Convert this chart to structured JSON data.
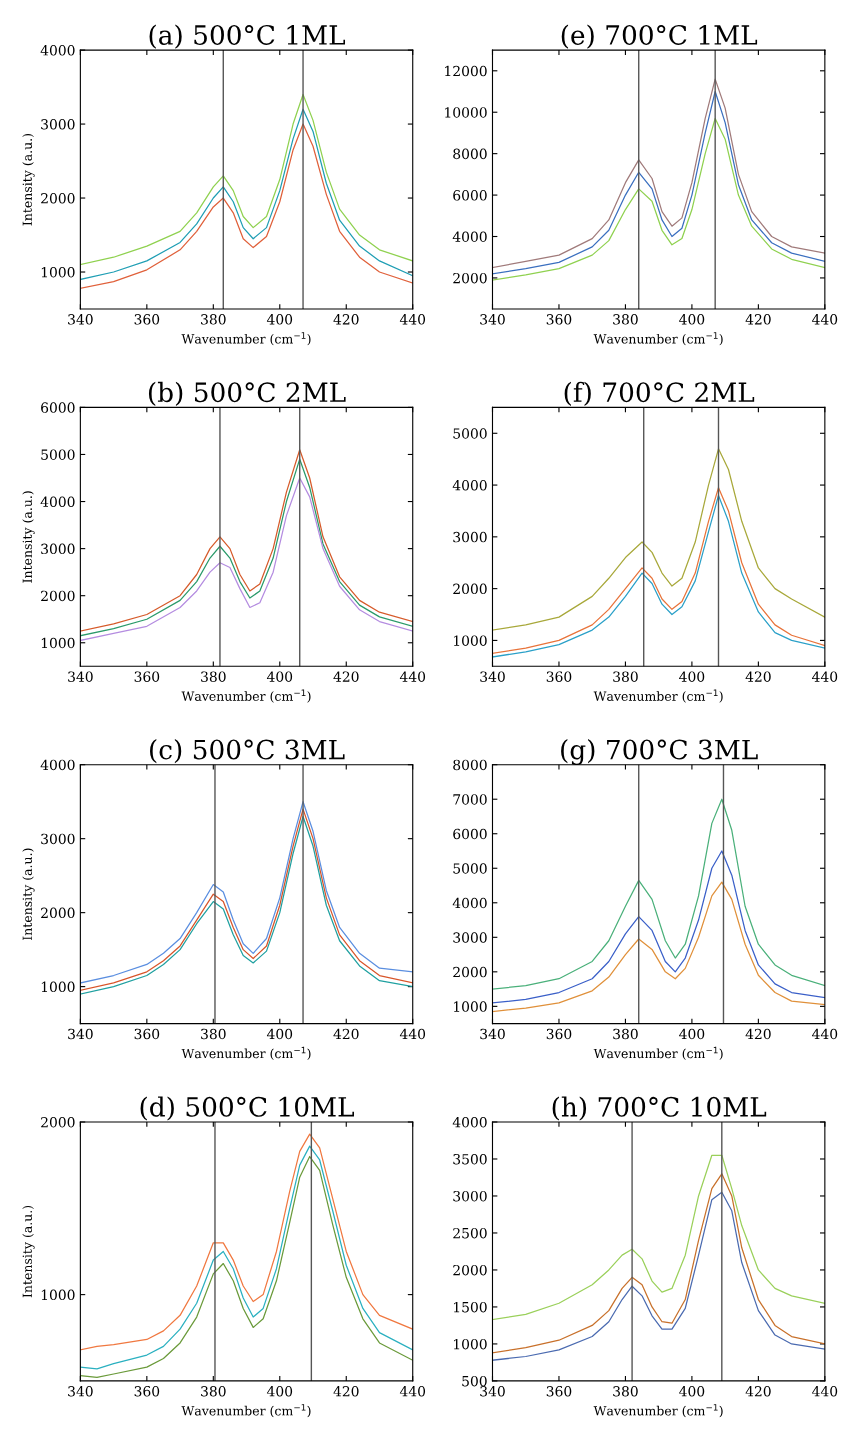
{
  "chart_data": [
    {
      "type": "line",
      "title": "(a) 500°C 1ML",
      "xlabel": "Wavenumber (cm$^{−1}$)",
      "ylabel": "Intensity (a.u.)",
      "xlim": [
        340,
        440
      ],
      "xticks": [
        340,
        360,
        380,
        400,
        420,
        440
      ],
      "ylim": [
        500,
        4000
      ],
      "yticks": [
        1000,
        2000,
        3000,
        4000
      ],
      "ref_lines": [
        {
          "axis": "x",
          "value": 383,
          "color": "#555555"
        },
        {
          "axis": "x",
          "value": 407,
          "color": "#555555"
        }
      ],
      "x": [
        340,
        350,
        360,
        370,
        375,
        380,
        383,
        386,
        389,
        392,
        396,
        400,
        404,
        407,
        410,
        414,
        418,
        424,
        430,
        440
      ],
      "series": [
        {
          "color": "#8fd14f",
          "values": [
            1100,
            1200,
            1350,
            1550,
            1800,
            2150,
            2300,
            2100,
            1750,
            1600,
            1750,
            2250,
            3000,
            3400,
            3050,
            2350,
            1850,
            1500,
            1300,
            1150
          ]
        },
        {
          "color": "#1f9eb4",
          "values": [
            900,
            1000,
            1150,
            1400,
            1650,
            2000,
            2150,
            1950,
            1600,
            1450,
            1600,
            2100,
            2800,
            3200,
            2900,
            2200,
            1700,
            1350,
            1150,
            950
          ]
        },
        {
          "color": "#e0603a",
          "values": [
            780,
            870,
            1030,
            1300,
            1550,
            1880,
            2000,
            1800,
            1450,
            1330,
            1480,
            1950,
            2650,
            3000,
            2700,
            2050,
            1550,
            1200,
            1000,
            850
          ]
        }
      ]
    },
    {
      "type": "line",
      "title": "(e) 700°C 1ML",
      "xlabel": "Wavenumber (cm$^{−1}$)",
      "xlim": [
        340,
        440
      ],
      "xticks": [
        340,
        360,
        380,
        400,
        420,
        440
      ],
      "ylim": [
        500,
        13000
      ],
      "yticks": [
        2000,
        4000,
        6000,
        8000,
        10000,
        12000
      ],
      "ref_lines": [
        {
          "axis": "x",
          "value": 384,
          "color": "#555555"
        },
        {
          "axis": "x",
          "value": 407,
          "color": "#555555"
        }
      ],
      "x": [
        340,
        350,
        360,
        370,
        375,
        380,
        384,
        388,
        391,
        394,
        397,
        400,
        404,
        407,
        410,
        414,
        418,
        424,
        430,
        440
      ],
      "series": [
        {
          "color": "#a07a7a",
          "values": [
            2500,
            2800,
            3100,
            3900,
            4800,
            6600,
            7700,
            6800,
            5200,
            4500,
            4900,
            6600,
            9700,
            11600,
            10200,
            7000,
            5200,
            4000,
            3500,
            3200
          ]
        },
        {
          "color": "#3a6fbf",
          "values": [
            2200,
            2450,
            2750,
            3500,
            4300,
            6000,
            7100,
            6300,
            4800,
            4000,
            4400,
            6000,
            9000,
            11000,
            9500,
            6500,
            4800,
            3700,
            3200,
            2800
          ]
        },
        {
          "color": "#8fd14f",
          "values": [
            1900,
            2150,
            2450,
            3100,
            3800,
            5300,
            6300,
            5700,
            4300,
            3600,
            3900,
            5300,
            8000,
            9700,
            8700,
            6000,
            4500,
            3400,
            2900,
            2500
          ]
        }
      ]
    },
    {
      "type": "line",
      "title": "(b) 500°C 2ML",
      "xlabel": "Wavenumber (cm$^{−1}$)",
      "ylabel": "Intensity (a.u.)",
      "xlim": [
        340,
        440
      ],
      "xticks": [
        340,
        360,
        380,
        400,
        420,
        440
      ],
      "ylim": [
        500,
        6000
      ],
      "yticks": [
        1000,
        2000,
        3000,
        4000,
        5000,
        6000
      ],
      "ref_lines": [
        {
          "axis": "x",
          "value": 382,
          "color": "#555555"
        },
        {
          "axis": "x",
          "value": 406,
          "color": "#555555"
        }
      ],
      "x": [
        340,
        350,
        360,
        370,
        375,
        379,
        382,
        385,
        388,
        391,
        394,
        398,
        402,
        406,
        409,
        413,
        418,
        424,
        430,
        440
      ],
      "series": [
        {
          "color": "#d65a2a",
          "values": [
            1250,
            1400,
            1600,
            2000,
            2450,
            3000,
            3250,
            3000,
            2450,
            2100,
            2250,
            3000,
            4200,
            5100,
            4500,
            3250,
            2400,
            1900,
            1650,
            1450
          ]
        },
        {
          "color": "#2a9a6a",
          "values": [
            1150,
            1300,
            1500,
            1900,
            2300,
            2800,
            3050,
            2800,
            2300,
            1950,
            2100,
            2800,
            4000,
            4900,
            4300,
            3100,
            2300,
            1800,
            1550,
            1350
          ]
        },
        {
          "color": "#b48ce0",
          "values": [
            1050,
            1200,
            1350,
            1750,
            2100,
            2500,
            2700,
            2600,
            2150,
            1750,
            1850,
            2500,
            3700,
            4500,
            4100,
            3000,
            2200,
            1700,
            1450,
            1250
          ]
        }
      ]
    },
    {
      "type": "line",
      "title": "(f) 700°C 2ML",
      "xlabel": "Wavenumber (cm$^{−1}$)",
      "xlim": [
        340,
        440
      ],
      "xticks": [
        340,
        360,
        380,
        400,
        420,
        440
      ],
      "ylim": [
        500,
        5500
      ],
      "yticks": [
        1000,
        2000,
        3000,
        4000,
        5000
      ],
      "ref_lines": [
        {
          "axis": "x",
          "value": 385.5,
          "color": "#555555"
        },
        {
          "axis": "x",
          "value": 408,
          "color": "#555555"
        }
      ],
      "x": [
        340,
        350,
        360,
        370,
        375,
        380,
        385,
        388,
        391,
        394,
        397,
        401,
        405,
        408,
        411,
        415,
        420,
        425,
        430,
        440
      ],
      "series": [
        {
          "color": "#a8a83a",
          "values": [
            1200,
            1300,
            1450,
            1850,
            2200,
            2600,
            2900,
            2700,
            2300,
            2050,
            2200,
            2900,
            4000,
            4700,
            4300,
            3300,
            2400,
            2000,
            1800,
            1450
          ]
        },
        {
          "color": "#e8733a",
          "values": [
            750,
            850,
            1000,
            1300,
            1600,
            2000,
            2400,
            2200,
            1800,
            1600,
            1750,
            2300,
            3300,
            3950,
            3500,
            2500,
            1700,
            1300,
            1100,
            900
          ]
        },
        {
          "color": "#2aa0c8",
          "values": [
            680,
            780,
            920,
            1200,
            1450,
            1850,
            2300,
            2100,
            1700,
            1500,
            1650,
            2150,
            3100,
            3800,
            3300,
            2300,
            1550,
            1150,
            1000,
            850
          ]
        }
      ]
    },
    {
      "type": "line",
      "title": "(c) 500°C 3ML",
      "xlabel": "Wavenumber (cm$^{−1}$)",
      "ylabel": "Intensity (a.u.)",
      "xlim": [
        340,
        440
      ],
      "xticks": [
        340,
        360,
        380,
        400,
        420,
        440
      ],
      "ylim": [
        500,
        4000
      ],
      "yticks": [
        1000,
        2000,
        3000,
        4000
      ],
      "ref_lines": [
        {
          "axis": "x",
          "value": 380.5,
          "color": "#555555"
        },
        {
          "axis": "x",
          "value": 407,
          "color": "#555555"
        }
      ],
      "x": [
        340,
        350,
        360,
        365,
        370,
        375,
        380,
        383,
        386,
        389,
        392,
        396,
        400,
        404,
        407,
        410,
        414,
        418,
        424,
        430,
        440
      ],
      "series": [
        {
          "color": "#5a8ee0",
          "values": [
            1050,
            1150,
            1300,
            1450,
            1650,
            2000,
            2380,
            2280,
            1900,
            1580,
            1450,
            1650,
            2200,
            3000,
            3500,
            3100,
            2300,
            1800,
            1450,
            1250,
            1200
          ]
        },
        {
          "color": "#d8552a",
          "values": [
            950,
            1050,
            1200,
            1350,
            1550,
            1900,
            2250,
            2150,
            1800,
            1500,
            1380,
            1550,
            2100,
            2900,
            3400,
            3000,
            2200,
            1700,
            1350,
            1150,
            1050
          ]
        },
        {
          "color": "#1fa0a0",
          "values": [
            900,
            1000,
            1150,
            1300,
            1500,
            1850,
            2150,
            2050,
            1700,
            1420,
            1320,
            1480,
            2000,
            2800,
            3300,
            2900,
            2100,
            1620,
            1280,
            1080,
            1000
          ]
        }
      ]
    },
    {
      "type": "line",
      "title": "(g) 700°C 3ML",
      "xlabel": "Wavenumber (cm$^{−1}$)",
      "xlim": [
        340,
        440
      ],
      "xticks": [
        340,
        360,
        380,
        400,
        420,
        440
      ],
      "ylim": [
        500,
        8000
      ],
      "yticks": [
        1000,
        2000,
        3000,
        4000,
        5000,
        6000,
        7000,
        8000
      ],
      "ref_lines": [
        {
          "axis": "x",
          "value": 384,
          "color": "#555555"
        },
        {
          "axis": "x",
          "value": 409.5,
          "color": "#555555"
        }
      ],
      "x": [
        340,
        350,
        360,
        370,
        375,
        380,
        384,
        388,
        392,
        395,
        398,
        402,
        406,
        409,
        412,
        416,
        420,
        425,
        430,
        440
      ],
      "series": [
        {
          "color": "#4ab07a",
          "values": [
            1500,
            1600,
            1800,
            2300,
            2900,
            3900,
            4650,
            4100,
            2900,
            2400,
            2800,
            4200,
            6300,
            7000,
            6100,
            3900,
            2800,
            2200,
            1900,
            1600
          ]
        },
        {
          "color": "#3a5fc8",
          "values": [
            1100,
            1200,
            1400,
            1800,
            2300,
            3100,
            3600,
            3200,
            2300,
            2000,
            2400,
            3500,
            5000,
            5500,
            4800,
            3200,
            2200,
            1650,
            1400,
            1250
          ]
        },
        {
          "color": "#e0903a",
          "values": [
            850,
            950,
            1100,
            1450,
            1850,
            2500,
            2950,
            2650,
            2000,
            1800,
            2100,
            3000,
            4200,
            4600,
            4100,
            2800,
            1900,
            1400,
            1150,
            1050
          ]
        }
      ]
    },
    {
      "type": "line",
      "title": "(d) 500°C 10ML",
      "xlabel": "Wavenumber (cm$^{−1}$)",
      "ylabel": "Intensity (a.u.)",
      "xlim": [
        340,
        440
      ],
      "xticks": [
        340,
        360,
        380,
        400,
        420,
        440
      ],
      "ylim": [
        500,
        2000
      ],
      "yticks": [
        1000,
        2000
      ],
      "ref_lines": [
        {
          "axis": "x",
          "value": 380.5,
          "color": "#555555"
        },
        {
          "axis": "x",
          "value": 409.5,
          "color": "#555555"
        }
      ],
      "x": [
        340,
        345,
        350,
        360,
        365,
        370,
        375,
        380,
        383,
        386,
        389,
        392,
        395,
        399,
        403,
        406,
        409,
        412,
        416,
        420,
        425,
        430,
        440
      ],
      "series": [
        {
          "color": "#f07840",
          "values": [
            680,
            700,
            710,
            740,
            790,
            880,
            1050,
            1300,
            1300,
            1200,
            1050,
            960,
            1000,
            1250,
            1600,
            1830,
            1930,
            1850,
            1550,
            1250,
            1000,
            880,
            800
          ]
        },
        {
          "color": "#2ab0c0",
          "values": [
            580,
            570,
            600,
            650,
            700,
            800,
            950,
            1200,
            1250,
            1150,
            980,
            870,
            920,
            1150,
            1500,
            1750,
            1860,
            1780,
            1480,
            1170,
            920,
            780,
            680
          ]
        },
        {
          "color": "#6a9a3a",
          "values": [
            530,
            520,
            540,
            580,
            630,
            720,
            870,
            1120,
            1180,
            1080,
            920,
            810,
            860,
            1080,
            1420,
            1680,
            1800,
            1720,
            1400,
            1100,
            860,
            720,
            620
          ]
        }
      ]
    },
    {
      "type": "line",
      "title": "(h) 700°C 10ML",
      "xlabel": "Wavenumber (cm$^{−1}$)",
      "xlim": [
        340,
        440
      ],
      "xticks": [
        340,
        360,
        380,
        400,
        420,
        440
      ],
      "ylim": [
        500,
        4000
      ],
      "yticks": [
        500,
        1000,
        1500,
        2000,
        2500,
        3000,
        3500,
        4000
      ],
      "ref_lines": [
        {
          "axis": "x",
          "value": 382,
          "color": "#555555"
        },
        {
          "axis": "x",
          "value": 409,
          "color": "#555555"
        }
      ],
      "x": [
        340,
        350,
        360,
        370,
        375,
        379,
        382,
        385,
        388,
        391,
        394,
        398,
        402,
        406,
        409,
        412,
        415,
        420,
        425,
        430,
        440
      ],
      "series": [
        {
          "color": "#9ad05a",
          "values": [
            1330,
            1400,
            1550,
            1800,
            2000,
            2200,
            2280,
            2150,
            1850,
            1700,
            1750,
            2200,
            3000,
            3550,
            3550,
            3100,
            2600,
            2000,
            1750,
            1650,
            1550
          ]
        },
        {
          "color": "#c8702a",
          "values": [
            880,
            950,
            1050,
            1250,
            1450,
            1750,
            1900,
            1800,
            1500,
            1300,
            1280,
            1600,
            2400,
            3100,
            3300,
            3000,
            2300,
            1600,
            1250,
            1100,
            1000
          ]
        },
        {
          "color": "#4a6ab0",
          "values": [
            780,
            830,
            920,
            1100,
            1300,
            1600,
            1780,
            1650,
            1380,
            1200,
            1200,
            1480,
            2200,
            2950,
            3050,
            2800,
            2100,
            1450,
            1120,
            1000,
            930
          ]
        }
      ]
    }
  ]
}
